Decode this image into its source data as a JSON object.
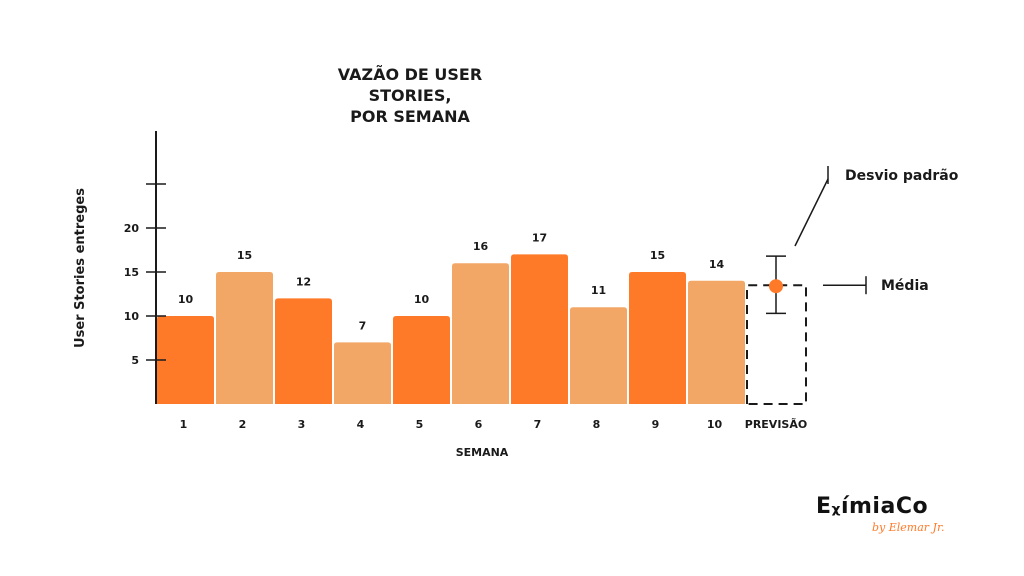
{
  "chart_data": {
    "type": "bar",
    "title_line1": "VAZÃO DE USER STORIES,",
    "title_line2": "POR SEMANA",
    "xlabel": "SEMANA",
    "ylabel": "User Stories entreges",
    "categories": [
      "1",
      "2",
      "3",
      "4",
      "5",
      "6",
      "7",
      "8",
      "9",
      "10"
    ],
    "values": [
      10,
      15,
      12,
      7,
      10,
      16,
      17,
      11,
      15,
      14
    ],
    "data_labels": [
      "10",
      "15",
      "12",
      "7",
      "10",
      "16",
      "17",
      "11",
      "15",
      "14"
    ],
    "yticks": [
      5,
      10,
      15,
      20,
      25
    ],
    "ytick_labels": [
      "5",
      "10",
      "15",
      "20",
      ""
    ],
    "ylim": [
      0,
      30
    ],
    "grid": false,
    "colors": {
      "dark": "#ff7a28",
      "light": "#f2a766",
      "axis": "#1a1a1a",
      "text": "#1a1a1a"
    },
    "bar_colors": [
      "dark",
      "light",
      "dark",
      "light",
      "dark",
      "light",
      "dark",
      "light",
      "dark",
      "light"
    ],
    "forecast": {
      "label": "PREVISÃO",
      "mean": 13.5,
      "std_low": 10.3,
      "std_high": 16.8,
      "mean_label": "Média",
      "std_label": "Desvio padrão"
    }
  },
  "brand": {
    "logo_text": "EXIMIACO",
    "logo_main": "EᵪímiaCo",
    "logo_sub": "by Elemar Jr."
  }
}
